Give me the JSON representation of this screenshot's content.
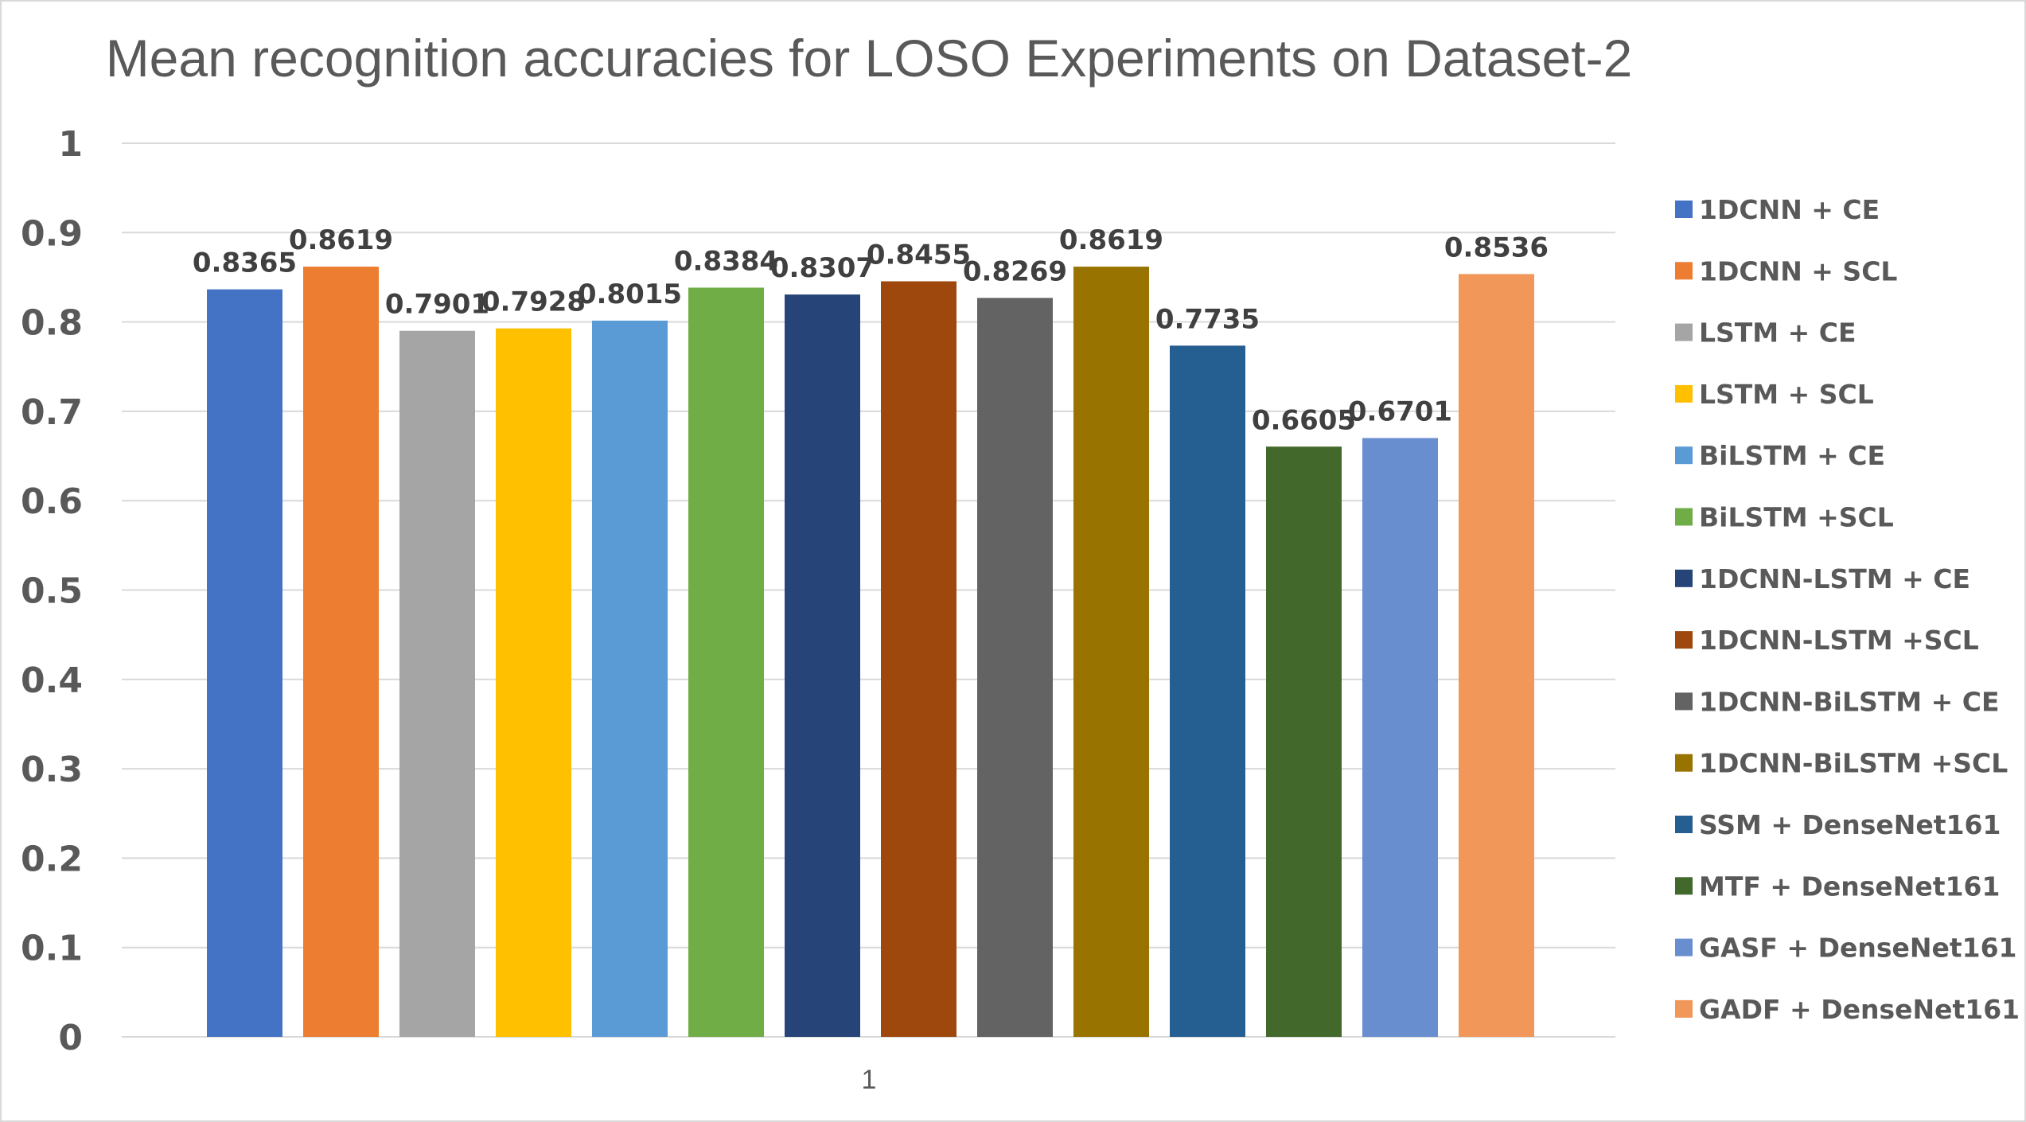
{
  "chart_data": {
    "type": "bar",
    "title": "Mean recognition accuracies for LOSO Experiments on Dataset-2",
    "categories": [
      "1"
    ],
    "xlabel": "",
    "ylabel": "",
    "ylim": [
      0,
      1
    ],
    "yticks": [
      "0",
      "0.1",
      "0.2",
      "0.3",
      "0.4",
      "0.5",
      "0.6",
      "0.7",
      "0.8",
      "0.9",
      "1"
    ],
    "grid": true,
    "legend_position": "right",
    "series": [
      {
        "name": "1DCNN + CE",
        "values": [
          0.8365
        ],
        "label": "0.8365",
        "color": "#4472C4"
      },
      {
        "name": "1DCNN + SCL",
        "values": [
          0.8619
        ],
        "label": "0.8619",
        "color": "#ED7D31"
      },
      {
        "name": "LSTM + CE",
        "values": [
          0.7901
        ],
        "label": "0.7901",
        "color": "#A5A5A5"
      },
      {
        "name": "LSTM + SCL",
        "values": [
          0.7928
        ],
        "label": "0.7928",
        "color": "#FFC000"
      },
      {
        "name": "BiLSTM + CE",
        "values": [
          0.8015
        ],
        "label": "0.8015",
        "color": "#5B9BD5"
      },
      {
        "name": "BiLSTM +SCL",
        "values": [
          0.8384
        ],
        "label": "0.8384",
        "color": "#70AD47"
      },
      {
        "name": "1DCNN-LSTM + CE",
        "values": [
          0.8307
        ],
        "label": "0.8307",
        "color": "#264478"
      },
      {
        "name": "1DCNN-LSTM +SCL",
        "values": [
          0.8455
        ],
        "label": "0.8455",
        "color": "#9E480E"
      },
      {
        "name": "1DCNN-BiLSTM + CE",
        "values": [
          0.8269
        ],
        "label": "0.8269",
        "color": "#636363"
      },
      {
        "name": "1DCNN-BiLSTM +SCL",
        "values": [
          0.8619
        ],
        "label": "0.8619",
        "color": "#997300"
      },
      {
        "name": "SSM + DenseNet161",
        "values": [
          0.7735
        ],
        "label": "0.7735",
        "color": "#255E91"
      },
      {
        "name": "MTF + DenseNet161",
        "values": [
          0.6605
        ],
        "label": "0.6605",
        "color": "#43682B"
      },
      {
        "name": "GASF + DenseNet161",
        "values": [
          0.6701
        ],
        "label": "0.6701",
        "color": "#698ED0"
      },
      {
        "name": "GADF + DenseNet161",
        "values": [
          0.8536
        ],
        "label": "0.8536",
        "color": "#F1975A"
      }
    ]
  }
}
